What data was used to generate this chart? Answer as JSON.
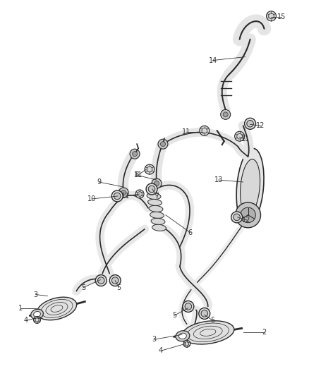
{
  "bg_color": "#ffffff",
  "line_color": "#2a2a2a",
  "label_color": "#333333",
  "label_fontsize": 7.0,
  "fig_width": 4.38,
  "fig_height": 5.33,
  "dpi": 100
}
